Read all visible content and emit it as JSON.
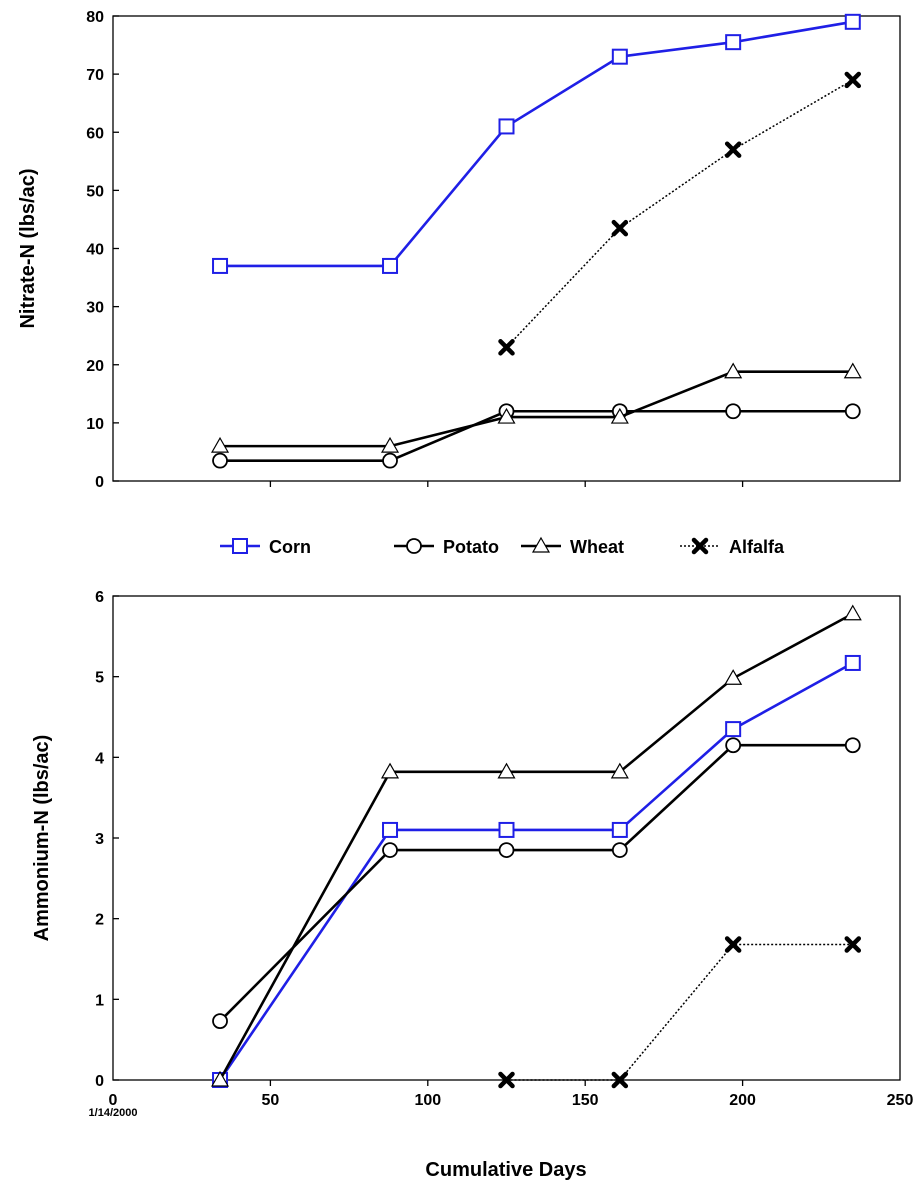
{
  "chart_data": [
    {
      "type": "line",
      "ylabel": "Nitrate-N (lbs/ac)",
      "xlim": [
        0,
        250
      ],
      "ylim": [
        0,
        80
      ],
      "y_ticks": [
        "0",
        "10",
        "20",
        "30",
        "40",
        "50",
        "60",
        "70",
        "80"
      ],
      "x_tick_labels_shown": false,
      "grid": false,
      "series": [
        {
          "name": "Corn",
          "color": "#1f1fe6",
          "marker": "square",
          "dash": "solid",
          "points": [
            [
              34,
              37
            ],
            [
              88,
              37
            ],
            [
              125,
              61
            ],
            [
              161,
              73
            ],
            [
              197,
              75.5
            ],
            [
              235,
              79
            ]
          ]
        },
        {
          "name": "Potato",
          "color": "#000000",
          "marker": "circle",
          "dash": "solid",
          "points": [
            [
              34,
              3.5
            ],
            [
              88,
              3.5
            ],
            [
              125,
              12
            ],
            [
              161,
              12
            ],
            [
              197,
              12
            ],
            [
              235,
              12
            ]
          ]
        },
        {
          "name": "Wheat",
          "color": "#000000",
          "marker": "triangle",
          "dash": "solid",
          "points": [
            [
              34,
              6
            ],
            [
              88,
              6
            ],
            [
              125,
              11
            ],
            [
              161,
              11
            ],
            [
              197,
              18.8
            ],
            [
              235,
              18.8
            ]
          ]
        },
        {
          "name": "Alfalfa",
          "color": "#000000",
          "marker": "x",
          "dash": "dotted",
          "points": [
            [
              125,
              23
            ],
            [
              161,
              43.5
            ],
            [
              197,
              57
            ],
            [
              235,
              69
            ]
          ]
        }
      ]
    },
    {
      "type": "line",
      "xlabel": "Cumulative Days",
      "ylabel": "Ammonium-N (lbs/ac)",
      "xlim": [
        0,
        250
      ],
      "ylim": [
        0,
        6
      ],
      "x_ticks": [
        "0",
        "50",
        "100",
        "150",
        "200",
        "250"
      ],
      "y_ticks": [
        "0",
        "1",
        "2",
        "3",
        "4",
        "5",
        "6"
      ],
      "x_annotation": "1/14/2000",
      "grid": false,
      "series": [
        {
          "name": "Corn",
          "color": "#1f1fe6",
          "marker": "square",
          "dash": "solid",
          "points": [
            [
              34,
              0
            ],
            [
              88,
              3.1
            ],
            [
              125,
              3.1
            ],
            [
              161,
              3.1
            ],
            [
              197,
              4.35
            ],
            [
              235,
              5.17
            ]
          ]
        },
        {
          "name": "Potato",
          "color": "#000000",
          "marker": "circle",
          "dash": "solid",
          "points": [
            [
              34,
              0.73
            ],
            [
              88,
              2.85
            ],
            [
              125,
              2.85
            ],
            [
              161,
              2.85
            ],
            [
              197,
              4.15
            ],
            [
              235,
              4.15
            ]
          ]
        },
        {
          "name": "Wheat",
          "color": "#000000",
          "marker": "triangle",
          "dash": "solid",
          "points": [
            [
              34,
              0
            ],
            [
              88,
              3.82
            ],
            [
              125,
              3.82
            ],
            [
              161,
              3.82
            ],
            [
              197,
              4.98
            ],
            [
              235,
              5.78
            ]
          ]
        },
        {
          "name": "Alfalfa",
          "color": "#000000",
          "marker": "x",
          "dash": "dotted",
          "points": [
            [
              125,
              0
            ],
            [
              161,
              0
            ],
            [
              197,
              1.68
            ],
            [
              235,
              1.68
            ]
          ]
        }
      ]
    }
  ],
  "legend": {
    "placement": "between-charts",
    "items": [
      {
        "label": "Corn",
        "color": "#1f1fe6",
        "marker": "square",
        "dash": "solid"
      },
      {
        "label": "Potato",
        "color": "#000000",
        "marker": "circle",
        "dash": "solid"
      },
      {
        "label": "Wheat",
        "color": "#000000",
        "marker": "triangle",
        "dash": "solid"
      },
      {
        "label": "Alfalfa",
        "color": "#000000",
        "marker": "x",
        "dash": "dotted"
      }
    ]
  }
}
